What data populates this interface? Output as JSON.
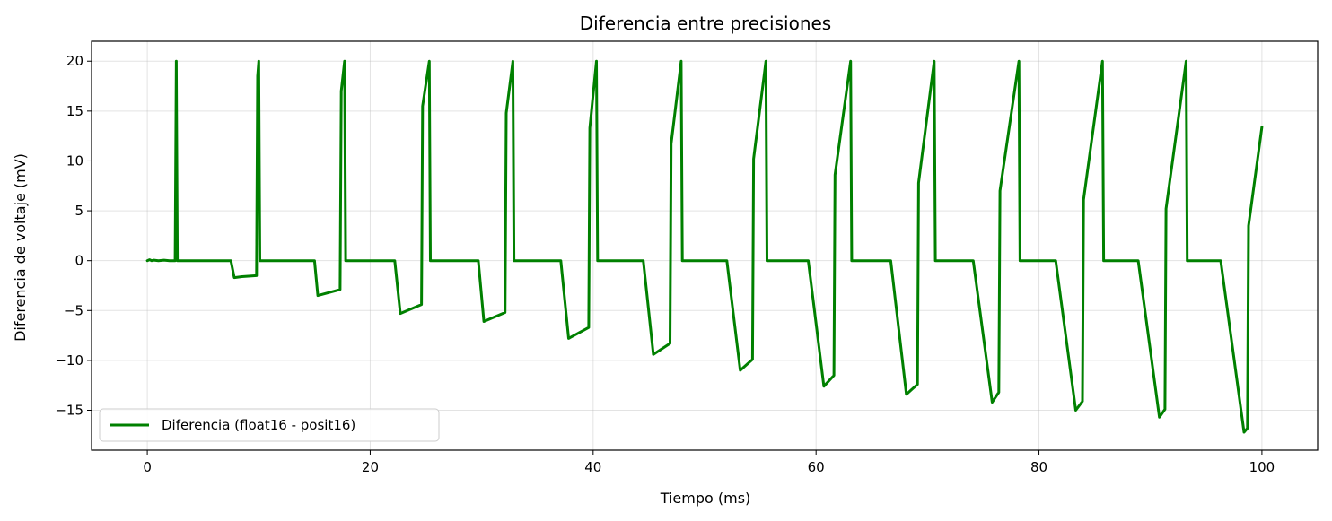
{
  "chart_data": {
    "type": "line",
    "title": "Diferencia entre precisiones",
    "xlabel": "Tiempo (ms)",
    "ylabel": "Diferencia de voltaje (mV)",
    "xlim": [
      -5,
      105
    ],
    "ylim": [
      -19,
      22
    ],
    "xticks": [
      0,
      20,
      40,
      60,
      80,
      100
    ],
    "yticks": [
      -15,
      -10,
      -5,
      0,
      5,
      10,
      15,
      20
    ],
    "grid": true,
    "legend_position": "lower-left",
    "series": [
      {
        "name": "Diferencia (float16 - posit16)",
        "color": "#008000",
        "x": [
          0.0,
          0.2,
          0.4,
          0.6,
          1.0,
          1.5,
          2.0,
          2.5,
          2.6,
          2.7,
          3.0,
          7.5,
          7.8,
          8.5,
          9.8,
          9.9,
          10.0,
          10.1,
          10.3,
          15.0,
          15.3,
          17.3,
          17.4,
          17.7,
          17.8,
          22.2,
          22.7,
          24.6,
          24.7,
          25.3,
          25.4,
          29.7,
          30.2,
          32.1,
          32.2,
          32.8,
          32.9,
          37.1,
          37.8,
          39.6,
          39.7,
          40.3,
          40.4,
          44.5,
          45.4,
          46.9,
          47.0,
          47.9,
          48.0,
          52.0,
          53.2,
          54.3,
          54.4,
          55.5,
          55.6,
          59.3,
          60.7,
          61.6,
          61.7,
          63.1,
          63.2,
          66.7,
          68.1,
          69.1,
          69.2,
          70.6,
          70.7,
          74.1,
          75.8,
          76.4,
          76.5,
          78.2,
          78.3,
          81.5,
          83.3,
          83.9,
          84.0,
          85.7,
          85.8,
          88.9,
          90.8,
          91.3,
          91.4,
          93.2,
          93.3,
          96.3,
          98.4,
          98.7,
          98.8,
          100.0
        ],
        "y": [
          0.0,
          0.1,
          0.0,
          0.05,
          0.0,
          0.05,
          0.0,
          0.0,
          20.0,
          0.0,
          0.0,
          0.0,
          -1.7,
          -1.6,
          -1.5,
          18.5,
          20.0,
          0.0,
          0.0,
          0.0,
          -3.5,
          -2.9,
          17.0,
          20.0,
          0.0,
          0.0,
          -5.3,
          -4.4,
          15.5,
          20.0,
          0.0,
          0.0,
          -6.1,
          -5.2,
          14.8,
          20.0,
          0.0,
          0.0,
          -7.8,
          -6.7,
          13.3,
          20.0,
          0.0,
          0.0,
          -9.4,
          -8.3,
          11.7,
          20.0,
          0.0,
          0.0,
          -11.0,
          -9.9,
          10.2,
          20.0,
          0.0,
          0.0,
          -12.6,
          -11.5,
          8.6,
          20.0,
          0.0,
          0.0,
          -13.4,
          -12.4,
          7.8,
          20.0,
          0.0,
          0.0,
          -14.2,
          -13.2,
          7.0,
          20.0,
          0.0,
          0.0,
          -15.0,
          -14.1,
          6.1,
          20.0,
          0.0,
          0.0,
          -15.7,
          -14.9,
          5.2,
          20.0,
          0.0,
          0.0,
          -17.2,
          -16.8,
          3.5,
          13.4
        ]
      }
    ]
  }
}
